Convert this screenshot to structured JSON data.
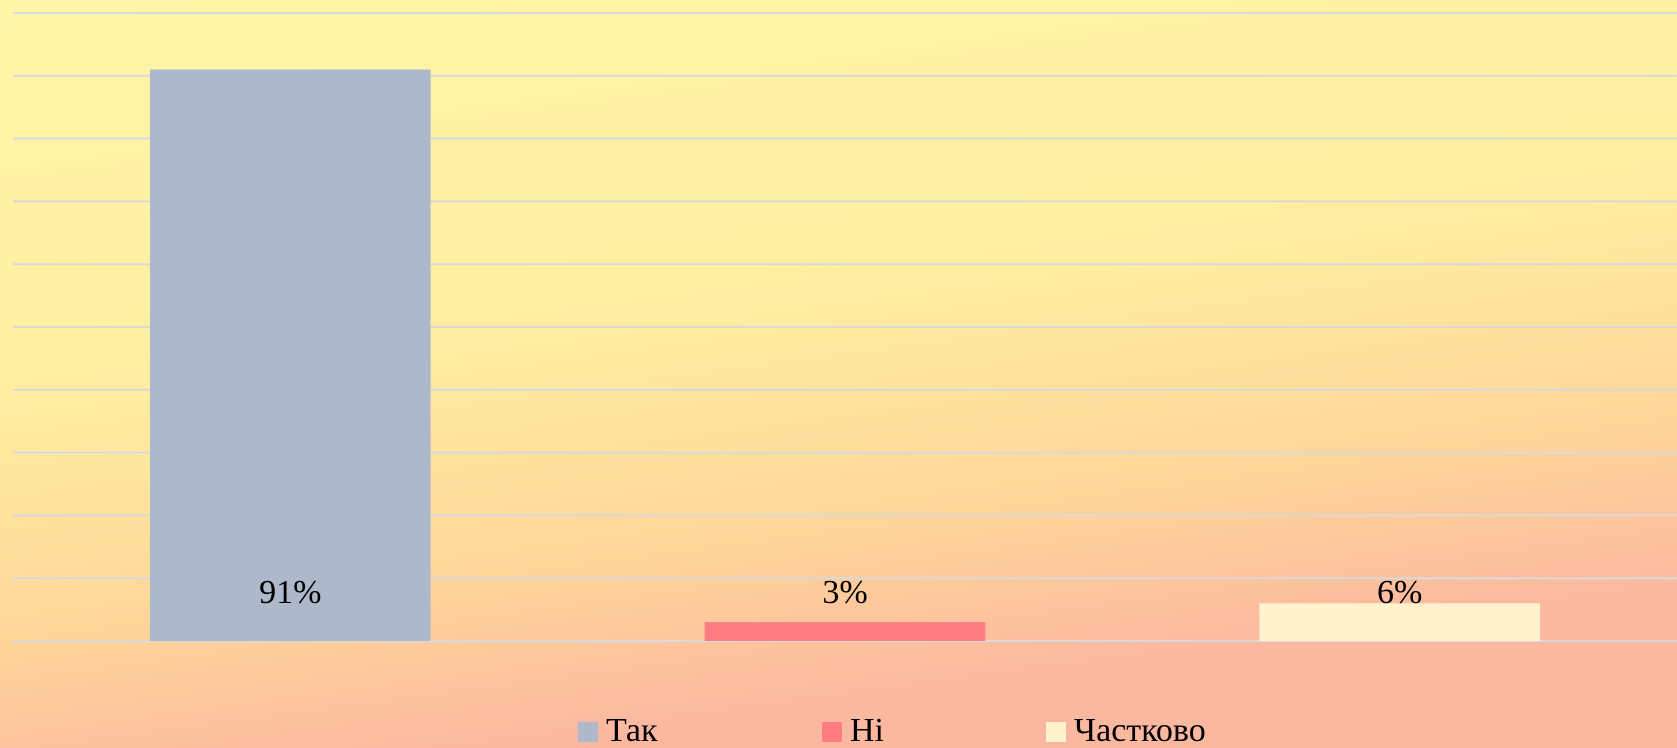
{
  "chart_data": {
    "type": "bar",
    "categories": [
      null
    ],
    "series": [
      {
        "name": "Так",
        "color": "#adb9ca",
        "values": [
          91
        ],
        "value_labels": [
          "91%"
        ]
      },
      {
        "name": "Ні",
        "color": "#ff7c80",
        "values": [
          3
        ],
        "value_labels": [
          "3%"
        ]
      },
      {
        "name": "Частково",
        "color": "#fff2cc",
        "values": [
          6
        ],
        "value_labels": [
          "6%"
        ]
      }
    ],
    "ylim": [
      0,
      100
    ],
    "yticks": [
      0,
      10,
      20,
      30,
      40,
      50,
      60,
      70,
      80,
      90,
      100
    ],
    "grid": true,
    "legend": "bottom"
  }
}
